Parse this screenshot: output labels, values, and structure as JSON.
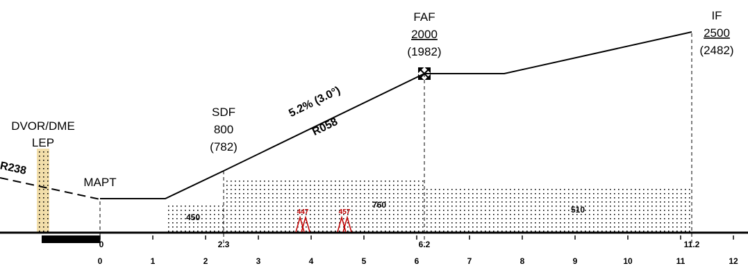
{
  "fixes": {
    "faf": {
      "name": "FAF",
      "altitude": "2000",
      "altitude_alt": "(1982)"
    },
    "if": {
      "name": "IF",
      "altitude": "2500",
      "altitude_alt": "(2482)"
    },
    "sdf": {
      "name": "SDF",
      "altitude": "800",
      "altitude_alt": "(782)"
    },
    "mapt": {
      "name": "MAPT"
    },
    "navaid": {
      "type": "DVOR/DME",
      "ident": "LEP"
    }
  },
  "segments": {
    "final_gradient": "5.2% (3.0°)",
    "final_radial": "R058",
    "inbound_radial": "R238"
  },
  "obstacle_areas": [
    {
      "value": "450"
    },
    {
      "value": "760"
    },
    {
      "value": "510"
    }
  ],
  "obstacles": [
    {
      "height": "447"
    },
    {
      "height": "457"
    }
  ],
  "distance_marks": [
    "0",
    "2.3",
    "6.2",
    "11.2"
  ],
  "axis": {
    "ticks": [
      "0",
      "1",
      "2",
      "3",
      "4",
      "5",
      "6",
      "7",
      "8",
      "9",
      "10",
      "11",
      "12"
    ]
  },
  "colors": {
    "obstacle": "#c00000",
    "navaid_column": "#f2deaa",
    "line": "#000000"
  }
}
